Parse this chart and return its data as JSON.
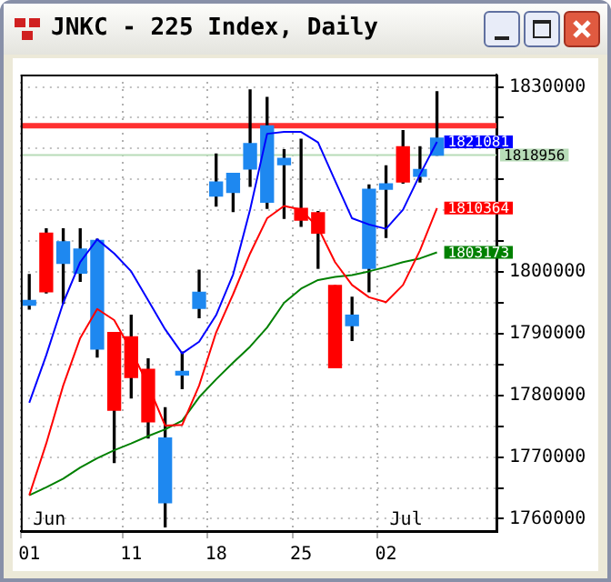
{
  "chart_data": {
    "type": "candlestick",
    "title": "JNKC - 225 Index, Daily",
    "categories": [
      "01",
      null,
      null,
      null,
      null,
      null,
      "11",
      null,
      null,
      null,
      null,
      "18",
      null,
      null,
      null,
      null,
      "25",
      null,
      null,
      null,
      null,
      "02",
      null,
      null,
      null,
      null,
      null,
      null
    ],
    "ohlc": [
      [
        1795400,
        1799600,
        1794000,
        1794600
      ],
      [
        1796800,
        1807000,
        1796600,
        1806300
      ],
      [
        1804900,
        1807000,
        1794900,
        1801400
      ],
      [
        1803700,
        1807000,
        1798500,
        1799800
      ],
      [
        1805100,
        1805300,
        1786200,
        1787500
      ],
      [
        1777600,
        1790200,
        1769100,
        1790200
      ],
      [
        1782900,
        1793000,
        1779600,
        1789500
      ],
      [
        1775700,
        1785900,
        1773100,
        1784200
      ],
      [
        1773100,
        1778000,
        1758700,
        1762600
      ],
      [
        1783900,
        1787000,
        1781100,
        1783300
      ],
      [
        1796700,
        1800300,
        1792600,
        1794100
      ],
      [
        1814600,
        1819100,
        1810700,
        1812300
      ],
      [
        1816000,
        1816000,
        1809800,
        1812900
      ],
      [
        1820800,
        1829500,
        1813900,
        1816700
      ],
      [
        1823700,
        1828300,
        1810300,
        1811300
      ],
      [
        1818400,
        1819800,
        1808700,
        1817400
      ],
      [
        1808400,
        1821500,
        1807400,
        1810300
      ],
      [
        1806300,
        1809800,
        1800600,
        1809600
      ],
      [
        1784500,
        1797800,
        1784500,
        1797800
      ],
      [
        1793000,
        1795900,
        1788900,
        1791300
      ],
      [
        1813400,
        1814100,
        1796800,
        1800600
      ],
      [
        1814300,
        1817200,
        1805600,
        1813400
      ],
      [
        1814600,
        1822900,
        1814400,
        1820300
      ],
      [
        1816600,
        1820300,
        1814600,
        1815500
      ],
      [
        1821700,
        1829200,
        1818956,
        1818956
      ],
      null,
      null,
      null
    ],
    "colors": [
      "#1e88f0",
      "#ff0000",
      "#1e88f0",
      "#1e88f0",
      "#1e88f0",
      "#ff0000",
      "#ff0000",
      "#ff0000",
      "#1e88f0",
      "#1e88f0",
      "#1e88f0",
      "#1e88f0",
      "#1e88f0",
      "#1e88f0",
      "#1e88f0",
      "#1e88f0",
      "#ff0000",
      "#ff0000",
      "#ff0000",
      "#1e88f0",
      "#1e88f0",
      "#1e88f0",
      "#ff0000",
      "#1e88f0",
      "#1e88f0",
      null,
      null,
      null
    ],
    "series": [
      {
        "type": "line",
        "color": "#0000ff",
        "values": [
          1778800,
          1786500,
          1795000,
          1801600,
          1805300,
          1803000,
          1800100,
          1795400,
          1790700,
          1786800,
          1788700,
          1793000,
          1799600,
          1810100,
          1822400,
          1822700,
          1822700,
          1821000,
          1814800,
          1808700,
          1807700,
          1807000,
          1810100,
          1815800,
          1821081,
          null,
          null,
          null
        ],
        "value_labels": [
          null,
          null,
          null,
          null,
          null,
          null,
          null,
          null,
          null,
          null,
          null,
          null,
          null,
          null,
          null,
          null,
          null,
          null,
          null,
          null,
          null,
          null,
          null,
          null,
          "1821081",
          null,
          null,
          null
        ]
      },
      {
        "type": "line",
        "color": "#ff0000",
        "values": [
          1763800,
          1772200,
          1781600,
          1789300,
          1794000,
          1792200,
          1787300,
          1781600,
          1775100,
          1775200,
          1781600,
          1790200,
          1796400,
          1803000,
          1808700,
          1810700,
          1810100,
          1807200,
          1801600,
          1797900,
          1795900,
          1795100,
          1797900,
          1803500,
          1810364,
          null,
          null,
          null
        ],
        "value_labels": [
          null,
          null,
          null,
          null,
          null,
          null,
          null,
          null,
          null,
          null,
          null,
          null,
          null,
          null,
          null,
          null,
          null,
          null,
          null,
          null,
          null,
          null,
          null,
          null,
          "1810364",
          null,
          null,
          null
        ]
      },
      {
        "type": "line",
        "color": "#008000",
        "values": [
          1763800,
          1765100,
          1766500,
          1768300,
          1769800,
          1771100,
          1772200,
          1773400,
          1774500,
          1775900,
          1779700,
          1782600,
          1785300,
          1787900,
          1791000,
          1795000,
          1797300,
          1798700,
          1799200,
          1799500,
          1800100,
          1800800,
          1801600,
          1802200,
          1803173,
          null,
          null,
          null
        ],
        "value_labels": [
          null,
          null,
          null,
          null,
          null,
          null,
          null,
          null,
          null,
          null,
          null,
          null,
          null,
          null,
          null,
          null,
          null,
          null,
          null,
          null,
          null,
          null,
          null,
          null,
          "1803173",
          null,
          null,
          null
        ]
      }
    ],
    "ylim": [
      1758000,
      1832000
    ],
    "yticks": [
      1760000,
      {
        "value": 1765000,
        "label": null
      },
      1770000,
      {
        "value": 1775000,
        "label": null
      },
      1780000,
      {
        "value": 1785000,
        "label": null
      },
      1790000,
      {
        "value": 1795000,
        "label": null
      },
      1800000,
      {
        "value": 1805000,
        "label": null
      },
      {
        "value": 1810000,
        "label": null
      },
      {
        "value": 1815000,
        "label": null
      },
      {
        "value": 1820000,
        "label": null
      },
      {
        "value": 1825000,
        "label": null
      },
      1830000
    ],
    "ref_lines": [
      {
        "axis": "y",
        "value": 1823700,
        "color": "#ff3030"
      },
      {
        "axis": "y",
        "value": 1818956,
        "label": "1818956",
        "color": "#b8dcb8"
      }
    ],
    "annotations": [
      "Jun",
      "Jul"
    ],
    "grid": true,
    "legend": false
  }
}
